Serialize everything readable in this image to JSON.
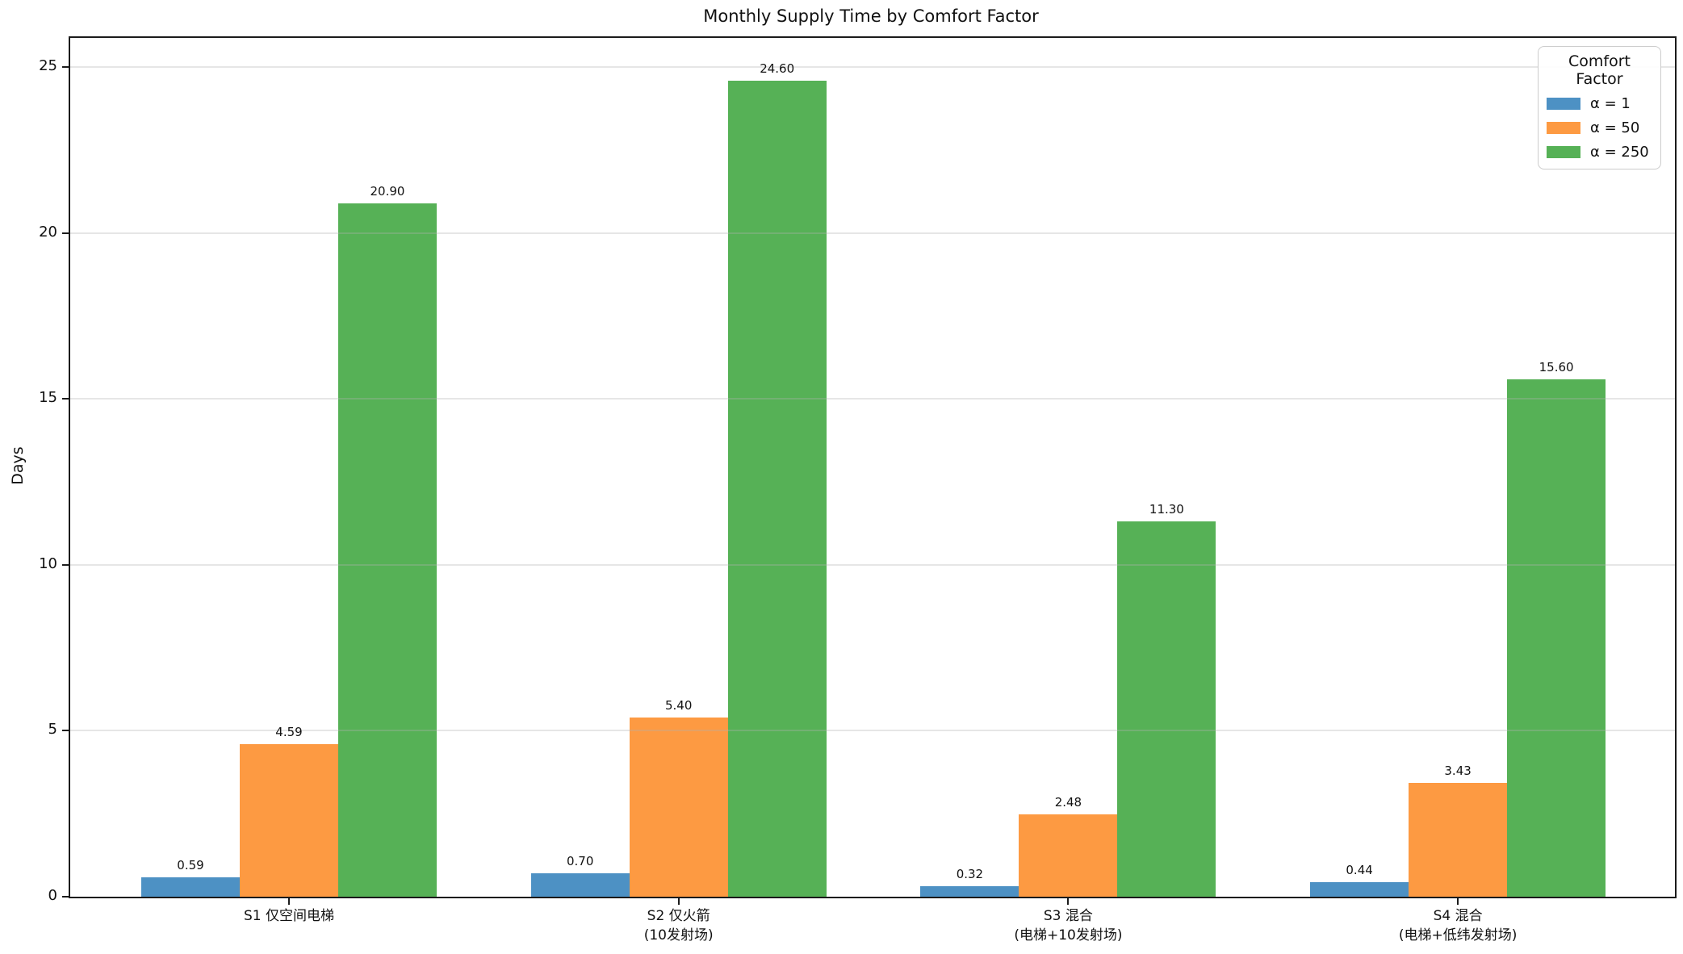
{
  "figure": {
    "title": "Monthly Supply Time by Comfort Factor",
    "ylabel": "Days"
  },
  "chart_data": {
    "type": "bar",
    "title": "Monthly Supply Time by Comfort Factor",
    "xlabel": "",
    "ylabel": "Days",
    "ylim": [
      0,
      25.88
    ],
    "yticks": [
      0,
      5,
      10,
      15,
      20,
      25
    ],
    "grid": {
      "axis": "y",
      "style": "faint horizontal lines drawn above bars"
    },
    "legend": {
      "title": "Comfort Factor",
      "position": "upper-right"
    },
    "categories": [
      {
        "lines": [
          "S1 仅空间电梯"
        ]
      },
      {
        "lines": [
          "S2 仅火箭",
          "(10发射场)"
        ]
      },
      {
        "lines": [
          "S3 混合",
          "(电梯+10发射场)"
        ]
      },
      {
        "lines": [
          "S4 混合",
          "(电梯+低纬发射场)"
        ]
      }
    ],
    "series": [
      {
        "name": "α = 1",
        "color": "#4d91c4",
        "values": [
          0.59,
          0.7,
          0.32,
          0.44
        ]
      },
      {
        "name": "α = 50",
        "color": "#fd9a42",
        "values": [
          4.59,
          5.4,
          2.48,
          3.43
        ]
      },
      {
        "name": "α = 250",
        "color": "#56b156",
        "values": [
          20.9,
          24.6,
          11.3,
          15.6
        ]
      }
    ],
    "value_label_decimals": 2
  }
}
